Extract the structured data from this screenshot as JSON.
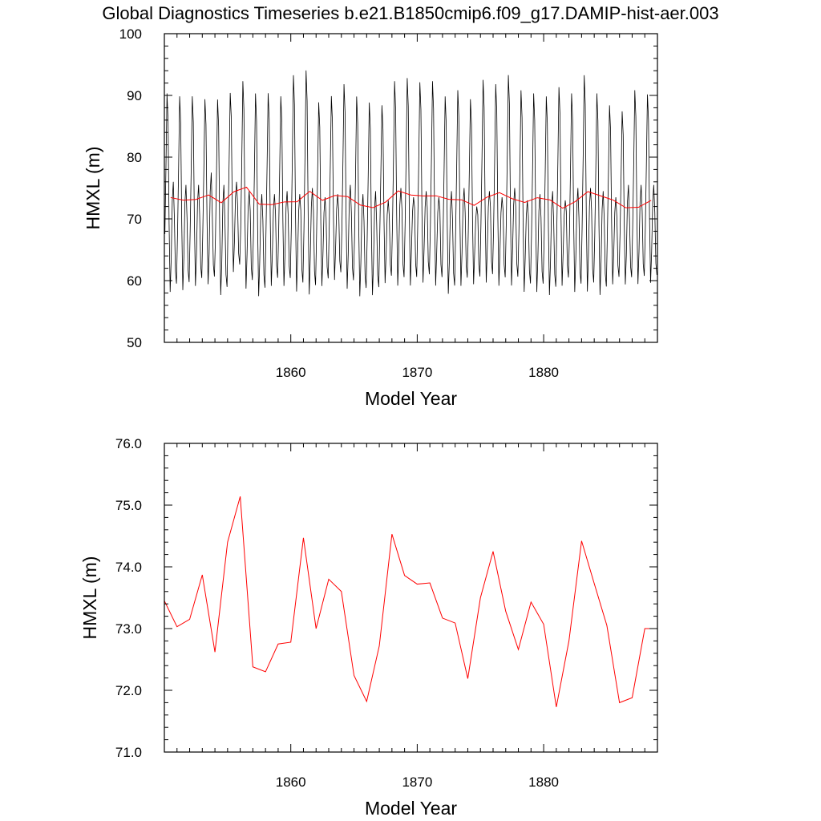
{
  "title": "Global Diagnostics Timeseries b.e21.B1850cmip6.f09_g17.DAMIP-hist-aer.003",
  "chart_data": [
    {
      "type": "line",
      "xlabel": "Model Year",
      "ylabel": "HMXL (m)",
      "xlim": [
        1850,
        1889
      ],
      "ylim": [
        50,
        100
      ],
      "x_ticks": [
        1860,
        1870,
        1880
      ],
      "x_tick_labels": [
        "1860",
        "1870",
        "1880"
      ],
      "y_ticks": [
        50,
        60,
        70,
        80,
        90,
        100
      ],
      "y_tick_labels": [
        "50",
        "60",
        "70",
        "80",
        "90",
        "100"
      ],
      "series": [
        {
          "color": "#000000",
          "kind": "monthly",
          "annual_max": [
            91.0,
            90.5,
            90.5,
            90.0,
            90.0,
            91.0,
            93.0,
            91.0,
            91.0,
            90.5,
            94.0,
            94.8,
            89.5,
            90.5,
            92.5,
            90.5,
            89.5,
            89.0,
            93.0,
            93.5,
            92.8,
            93.0,
            90.5,
            91.5,
            90.0,
            93.2,
            92.5,
            94.0,
            91.5,
            91.0,
            90.5,
            92.0,
            91.0,
            94.0,
            91.0,
            89.0,
            88.0,
            91.5,
            90.8
          ],
          "annual_min": [
            57.5,
            57.8,
            58.5,
            58.8,
            57.0,
            60.8,
            58.0,
            56.8,
            58.5,
            58.5,
            57.5,
            57.0,
            58.5,
            59.5,
            58.0,
            56.8,
            57.0,
            59.0,
            58.5,
            58.5,
            59.0,
            58.5,
            57.2,
            58.5,
            58.8,
            59.0,
            58.5,
            58.5,
            57.5,
            57.5,
            57.0,
            58.5,
            57.5,
            57.5,
            57.0,
            58.8,
            58.8,
            58.8,
            59.0
          ],
          "secondary_max": [
            76.0,
            75.5,
            75.5,
            77.5,
            75.5,
            76.0,
            74.5,
            74.0,
            74.0,
            74.5,
            74.0,
            75.0,
            73.5,
            74.0,
            75.5,
            74.0,
            74.5,
            73.0,
            75.0,
            73.5,
            74.5,
            73.5,
            74.5,
            75.0,
            72.0,
            74.5,
            73.5,
            75.0,
            73.0,
            74.0,
            74.5,
            73.0,
            75.0,
            75.0,
            74.5,
            73.5,
            75.5,
            75.5,
            75.5
          ]
        },
        {
          "color": "#ff0000",
          "kind": "annual",
          "x": [
            1850.5,
            1851.5,
            1852.5,
            1853.5,
            1854.5,
            1855.5,
            1856.5,
            1857.5,
            1858.5,
            1859.5,
            1860.5,
            1861.5,
            1862.5,
            1863.5,
            1864.5,
            1865.5,
            1866.5,
            1867.5,
            1868.5,
            1869.5,
            1870.5,
            1871.5,
            1872.5,
            1873.5,
            1874.5,
            1875.5,
            1876.5,
            1877.5,
            1878.5,
            1879.5,
            1880.5,
            1881.5,
            1882.5,
            1883.5,
            1884.5,
            1885.5,
            1886.5,
            1887.5,
            1888.5
          ],
          "values": [
            73.45,
            73.03,
            73.15,
            73.87,
            72.62,
            74.4,
            75.14,
            72.38,
            72.3,
            72.75,
            72.78,
            74.47,
            73.0,
            73.8,
            73.6,
            72.24,
            71.82,
            72.72,
            74.53,
            73.86,
            73.72,
            73.74,
            73.17,
            73.09,
            72.19,
            73.5,
            74.25,
            73.28,
            72.66,
            73.43,
            73.07,
            71.73,
            72.8,
            74.42,
            73.73,
            73.05,
            71.8,
            71.88,
            73.0
          ]
        }
      ]
    },
    {
      "type": "line",
      "xlabel": "Model Year",
      "ylabel": "HMXL (m)",
      "xlim": [
        1850,
        1889
      ],
      "ylim": [
        71,
        76
      ],
      "x_ticks": [
        1860,
        1870,
        1880
      ],
      "x_tick_labels": [
        "1860",
        "1870",
        "1880"
      ],
      "y_ticks": [
        71,
        72,
        73,
        74,
        75,
        76
      ],
      "y_tick_labels": [
        "71.0",
        "72.0",
        "73.0",
        "74.0",
        "75.0",
        "76.0"
      ],
      "series": [
        {
          "color": "#ff0000",
          "kind": "annual",
          "x": [
            1850.0,
            1851.0,
            1852.0,
            1853.0,
            1854.0,
            1855.0,
            1856.0,
            1857.0,
            1858.0,
            1859.0,
            1860.0,
            1861.0,
            1862.0,
            1863.0,
            1864.0,
            1865.0,
            1866.0,
            1867.0,
            1868.0,
            1869.0,
            1870.0,
            1871.0,
            1872.0,
            1873.0,
            1874.0,
            1875.0,
            1876.0,
            1877.0,
            1878.0,
            1879.0,
            1880.0,
            1881.0,
            1882.0,
            1883.0,
            1884.0,
            1885.0,
            1886.0,
            1887.0,
            1888.0,
            1889.0
          ],
          "values": [
            73.45,
            73.03,
            73.15,
            73.87,
            72.62,
            74.4,
            75.14,
            72.38,
            72.3,
            72.75,
            72.78,
            74.47,
            73.0,
            73.8,
            73.6,
            72.24,
            71.82,
            72.72,
            74.53,
            73.86,
            73.72,
            73.74,
            73.17,
            73.09,
            72.19,
            73.5,
            74.25,
            73.28,
            72.66,
            73.43,
            73.07,
            71.73,
            72.8,
            74.42,
            73.73,
            73.05,
            71.8,
            71.88,
            73.0,
            73.0
          ]
        }
      ]
    }
  ]
}
